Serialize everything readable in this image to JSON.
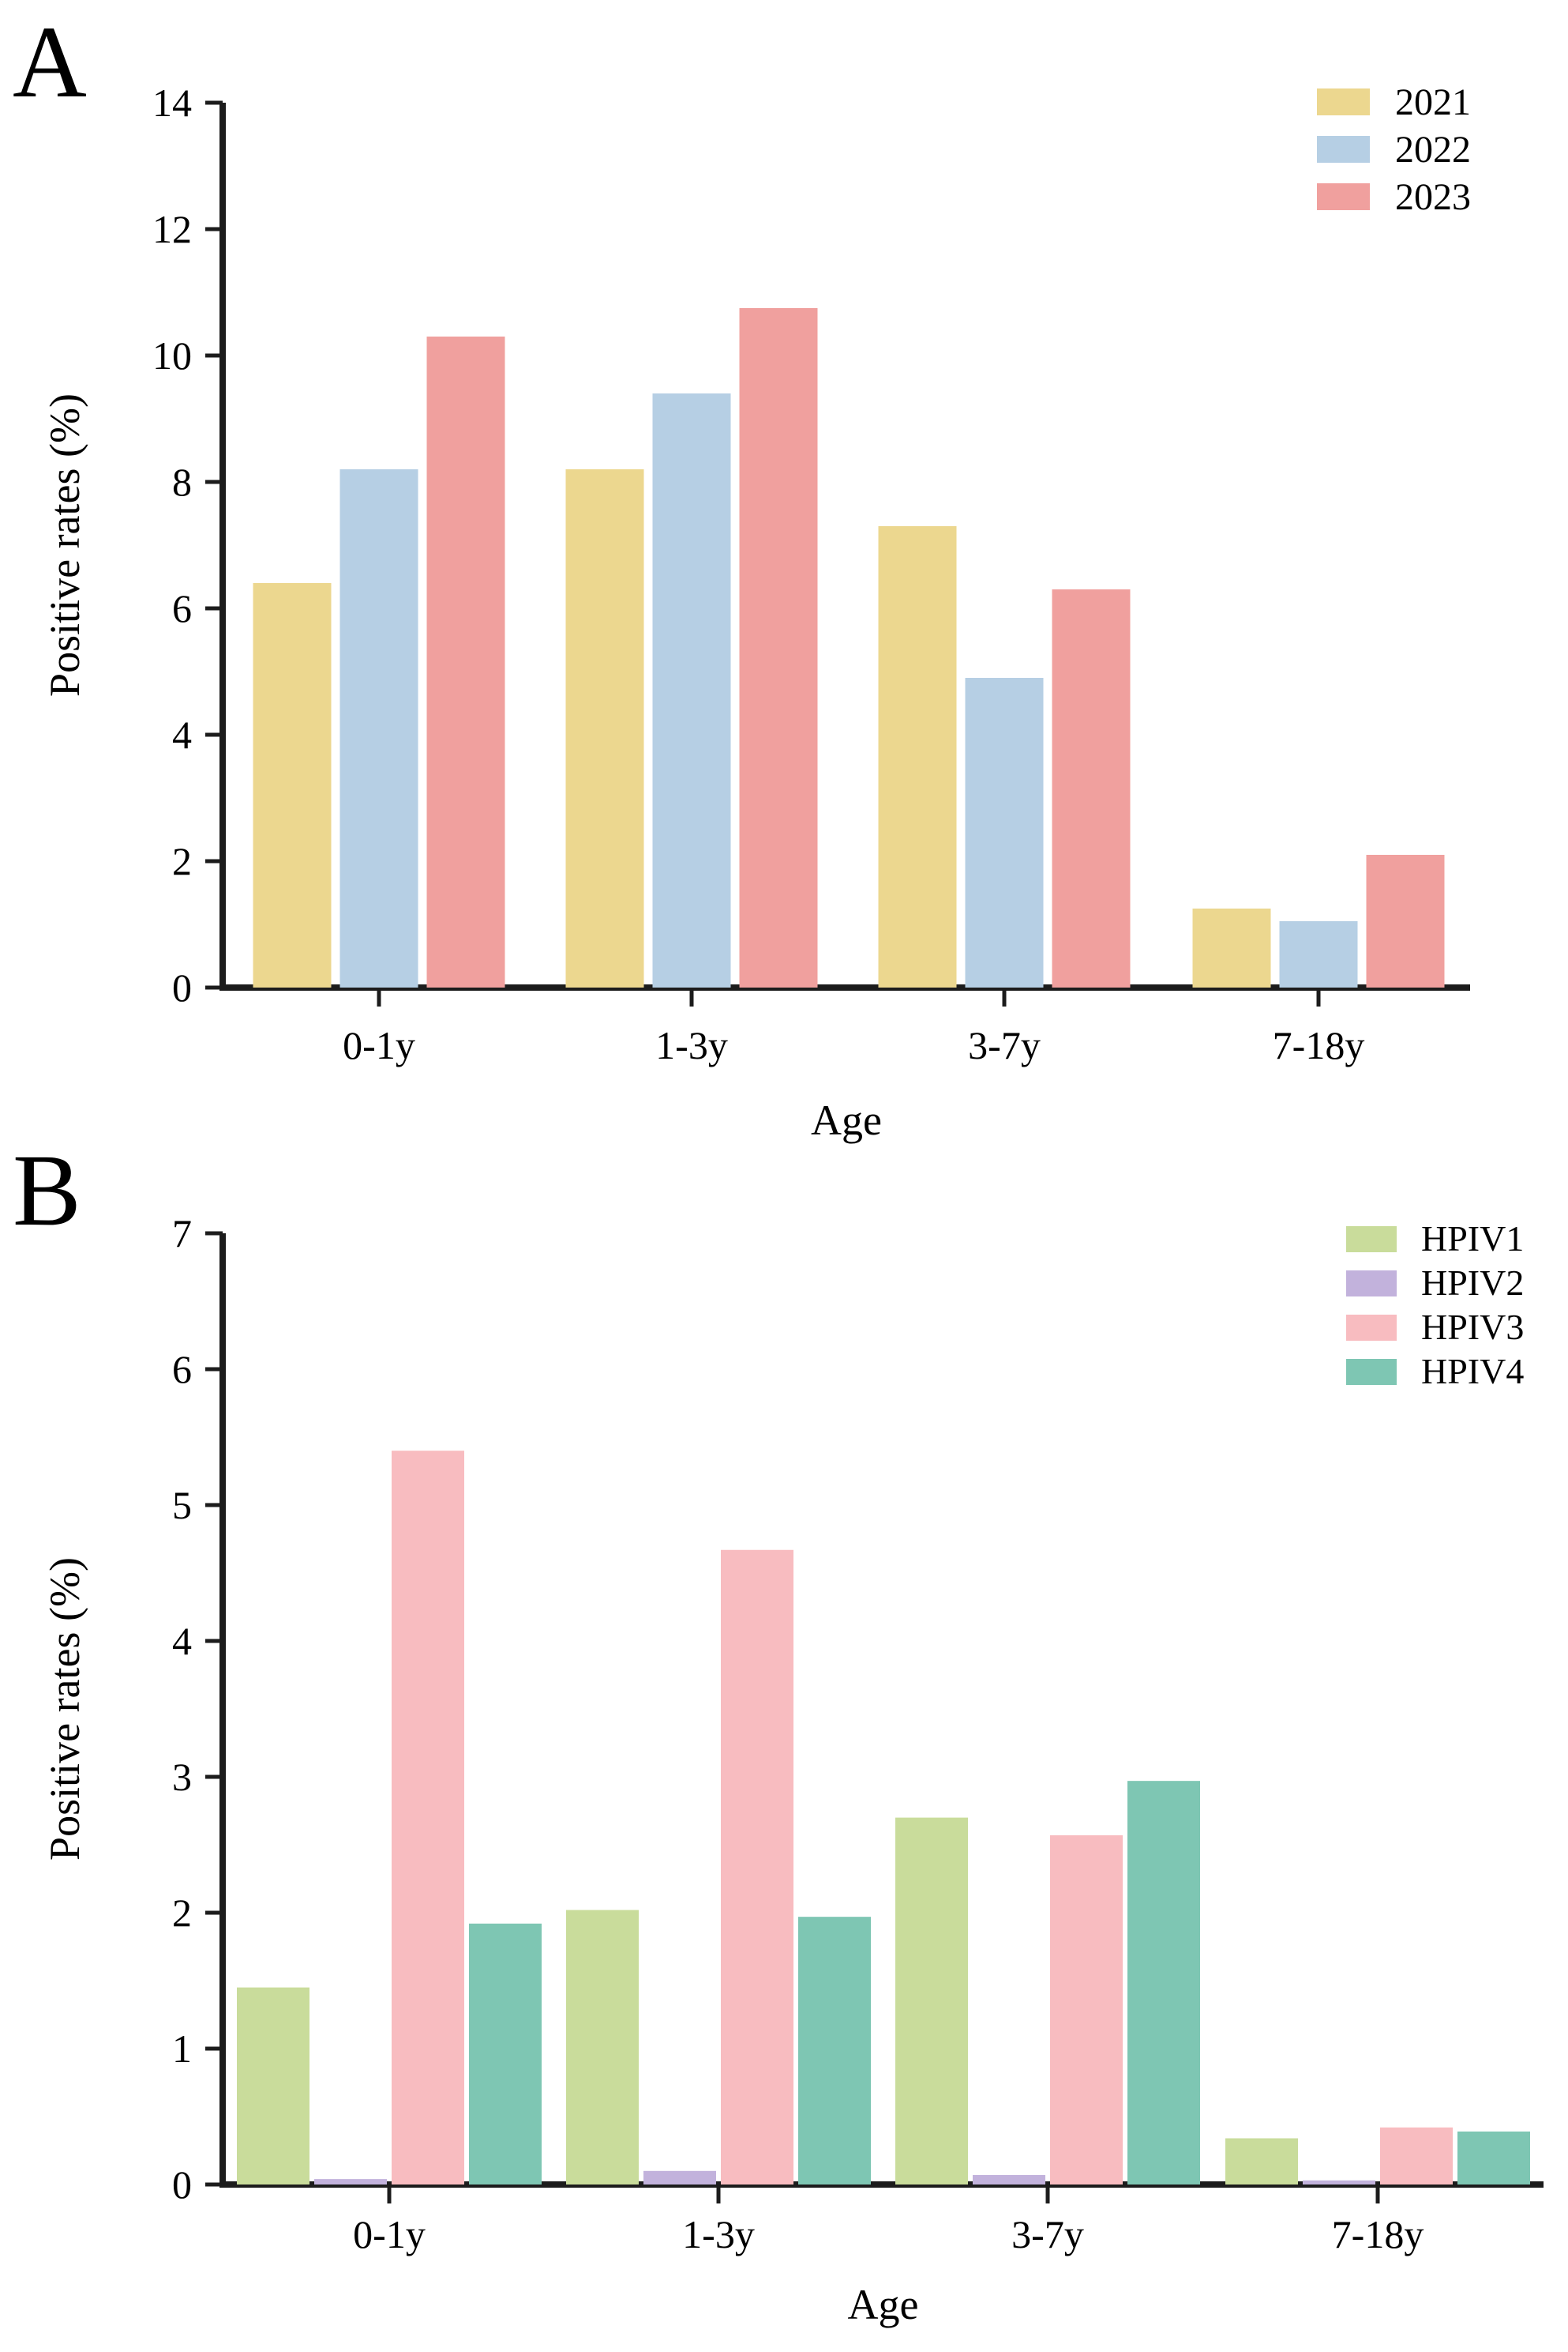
{
  "background": "#ffffff",
  "text_color": "#000000",
  "axis_color": "#1c1c1c",
  "chart_data": [
    {
      "type": "bar",
      "panel_label": "A",
      "xlabel": "Age",
      "ylabel": "Positive rates (%)",
      "categories": [
        "0-1y",
        "1-3y",
        "3-7y",
        "7-18y"
      ],
      "ylim": [
        0,
        14
      ],
      "yticks": [
        0,
        2,
        4,
        6,
        8,
        10,
        12,
        14
      ],
      "grid": false,
      "legend_position": "top-right",
      "series": [
        {
          "name": "2021",
          "color": "#ecd78f",
          "values": [
            6.4,
            8.2,
            7.3,
            1.25
          ]
        },
        {
          "name": "2022",
          "color": "#b6cfe4",
          "values": [
            8.2,
            9.4,
            4.9,
            1.05
          ]
        },
        {
          "name": "2023",
          "color": "#f0a09e",
          "values": [
            10.3,
            10.75,
            6.3,
            2.1
          ]
        }
      ]
    },
    {
      "type": "bar",
      "panel_label": "B",
      "xlabel": "Age",
      "ylabel": "Positive rates (%)",
      "categories": [
        "0-1y",
        "1-3y",
        "3-7y",
        "7-18y"
      ],
      "ylim": [
        0,
        7
      ],
      "yticks": [
        0,
        1,
        2,
        3,
        4,
        5,
        6,
        7
      ],
      "grid": false,
      "legend_position": "top-right",
      "series": [
        {
          "name": "HPIV1",
          "color": "#c9dc9b",
          "values": [
            1.45,
            2.02,
            2.7,
            0.34
          ]
        },
        {
          "name": "HPIV2",
          "color": "#c2b2dc",
          "values": [
            0.04,
            0.1,
            0.07,
            0.03
          ]
        },
        {
          "name": "HPIV3",
          "color": "#f8bcc0",
          "values": [
            5.4,
            4.67,
            2.57,
            0.42
          ]
        },
        {
          "name": "HPIV4",
          "color": "#7ec6b3",
          "values": [
            1.92,
            1.97,
            2.97,
            0.39
          ]
        }
      ]
    }
  ]
}
